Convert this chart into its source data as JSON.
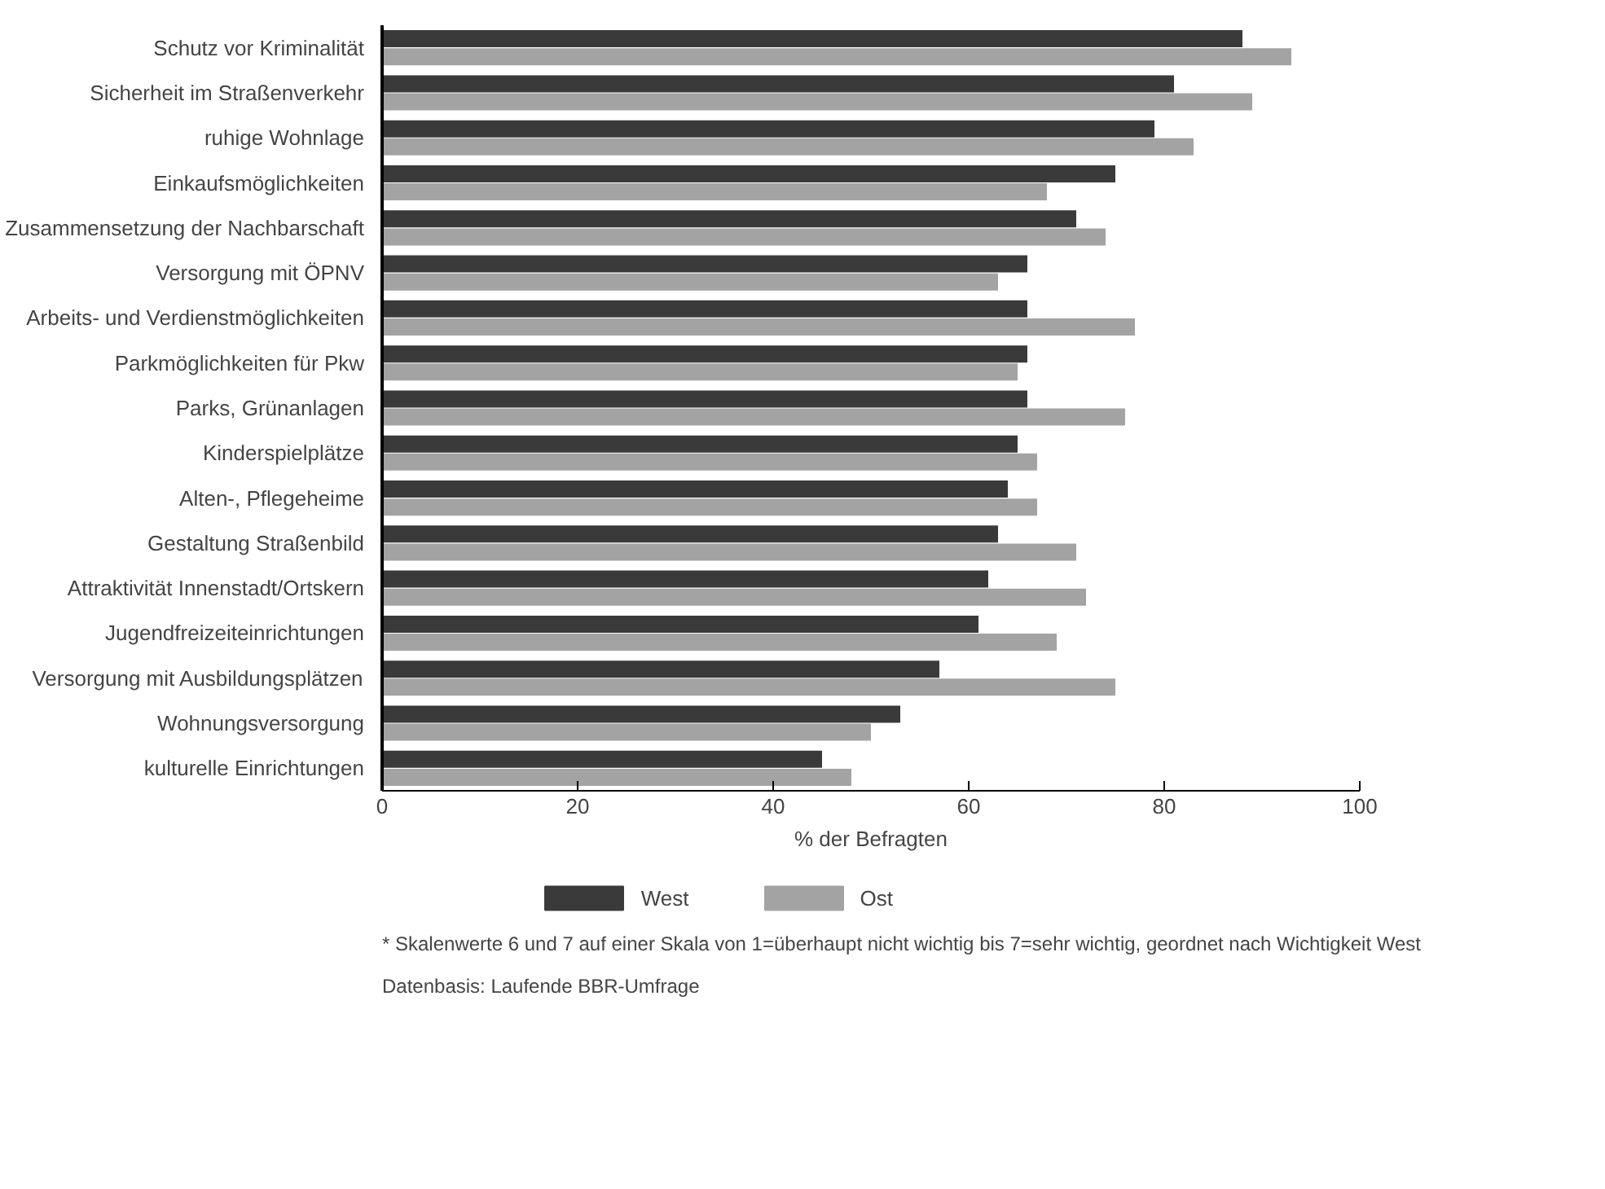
{
  "chart_data": {
    "type": "bar",
    "orientation": "horizontal",
    "categories": [
      "Schutz vor Kriminalität",
      "Sicherheit im Straßenverkehr",
      "ruhige Wohnlage",
      "Einkaufsmöglichkeiten",
      "Zusammensetzung der Nachbarschaft",
      "Versorgung mit ÖPNV",
      "Arbeits- und Verdienstmöglichkeiten",
      "Parkmöglichkeiten für Pkw",
      "Parks, Grünanlagen",
      "Kinderspielplätze",
      "Alten-, Pflegeheime",
      "Gestaltung Straßenbild",
      "Attraktivität Innenstadt/Ortskern",
      "Jugendfreizeiteinrichtungen",
      "Versorgung mit Ausbildungsplätzen",
      "Wohnungsversorgung",
      "kulturelle Einrichtungen"
    ],
    "series": [
      {
        "name": "West",
        "color": "#3a3a3a",
        "values": [
          88,
          81,
          79,
          75,
          71,
          66,
          66,
          66,
          66,
          65,
          64,
          63,
          62,
          61,
          57,
          53,
          45
        ]
      },
      {
        "name": "Ost",
        "color": "#a3a3a3",
        "values": [
          93,
          89,
          83,
          68,
          74,
          63,
          77,
          65,
          76,
          67,
          67,
          71,
          72,
          69,
          75,
          50,
          48
        ]
      }
    ],
    "xlim": [
      0,
      100
    ],
    "xticks": [
      0,
      20,
      40,
      60,
      80,
      100
    ],
    "xlabel": "% der Befragten",
    "legend": "bottom",
    "annotations": [
      "* Skalenwerte 6 und 7 auf einer Skala von 1=überhaupt nicht wichtig bis 7=sehr wichtig, geordnet nach Wichtigkeit West",
      "Datenbasis: Laufende BBR-Umfrage"
    ]
  }
}
